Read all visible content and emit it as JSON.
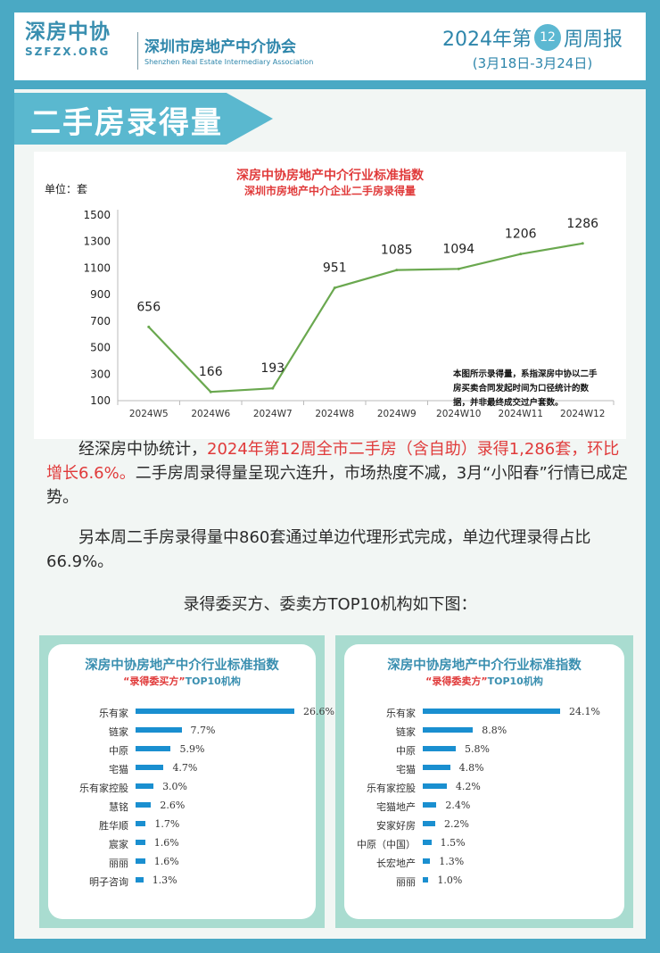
{
  "header": {
    "logo_main": "深房中协",
    "logo_sub": "SZFZX.ORG",
    "org_name": "深圳市房地产中介协会",
    "org_en": "Shenzhen Real Estate Intermediary Association",
    "week_prefix": "2024年第",
    "week_number": "12",
    "week_suffix": "周周报",
    "date_range": "(3月18日-3月24日)"
  },
  "section_title": "二手房录得量",
  "chart_data": {
    "type": "line",
    "title": "深房中协房地产中介行业标准指数",
    "subtitle": "深圳市房地产中介企业二手房录得量",
    "unit_label": "单位：套",
    "categories": [
      "2024W5",
      "2024W6",
      "2024W7",
      "2024W8",
      "2024W9",
      "2024W10",
      "2024W11",
      "2024W12"
    ],
    "values": [
      656,
      166,
      193,
      951,
      1085,
      1094,
      1206,
      1286
    ],
    "ylim": [
      100,
      1500
    ],
    "yticks": [
      100,
      300,
      500,
      700,
      900,
      1100,
      1300,
      1500
    ],
    "line_color": "#6aa84f",
    "grid": false,
    "note": "本图所示录得量，系指深房中协以二手房买卖合同发起时间为口径统计的数据，并非最终成交过户套数。"
  },
  "paragraph1": {
    "lead": "经深房中协统计，",
    "highlight": "2024年第12周全市二手房（含自助）录得1,286套，环比增长6.6%。",
    "rest": "二手房周录得量呈现六连升，市场热度不减，3月“小阳春”行情已成定势。"
  },
  "paragraph2": "另本周二手房录得量中860套通过单边代理形式完成，单边代理录得占比66.9%。",
  "top10_intro": "录得委买方、委卖方TOP10机构如下图：",
  "buyers": {
    "title": "深房中协房地产中介行业标准指数",
    "sub_highlight": "“录得委买方”",
    "sub_rest": "TOP10机构",
    "items": [
      {
        "label": "乐有家",
        "value": 26.6,
        "display": "26.6%"
      },
      {
        "label": "链家",
        "value": 7.7,
        "display": "7.7%"
      },
      {
        "label": "中原",
        "value": 5.9,
        "display": "5.9%"
      },
      {
        "label": "宅猫",
        "value": 4.7,
        "display": "4.7%"
      },
      {
        "label": "乐有家控股",
        "value": 3.0,
        "display": "3.0%"
      },
      {
        "label": "慧铭",
        "value": 2.6,
        "display": "2.6%"
      },
      {
        "label": "胜华顺",
        "value": 1.7,
        "display": "1.7%"
      },
      {
        "label": "宸家",
        "value": 1.6,
        "display": "1.6%"
      },
      {
        "label": "丽丽",
        "value": 1.6,
        "display": "1.6%"
      },
      {
        "label": "明子咨询",
        "value": 1.3,
        "display": "1.3%"
      }
    ]
  },
  "sellers": {
    "title": "深房中协房地产中介行业标准指数",
    "sub_highlight": "“录得委卖方”",
    "sub_rest": "TOP10机构",
    "items": [
      {
        "label": "乐有家",
        "value": 24.1,
        "display": "24.1%"
      },
      {
        "label": "链家",
        "value": 8.8,
        "display": "8.8%"
      },
      {
        "label": "中原",
        "value": 5.8,
        "display": "5.8%"
      },
      {
        "label": "宅猫",
        "value": 4.8,
        "display": "4.8%"
      },
      {
        "label": "乐有家控股",
        "value": 4.2,
        "display": "4.2%"
      },
      {
        "label": "宅猫地产",
        "value": 2.4,
        "display": "2.4%"
      },
      {
        "label": "安家好房",
        "value": 2.2,
        "display": "2.2%"
      },
      {
        "label": "中原（中国）",
        "value": 1.5,
        "display": "1.5%"
      },
      {
        "label": "长宏地产",
        "value": 1.3,
        "display": "1.3%"
      },
      {
        "label": "丽丽",
        "value": 1.0,
        "display": "1.0%"
      }
    ]
  },
  "colors": {
    "accent_red": "#e03a3a",
    "brand_blue": "#2e86ab",
    "bar_blue": "#1a8fd0",
    "card_border": "#a9dcd0"
  }
}
